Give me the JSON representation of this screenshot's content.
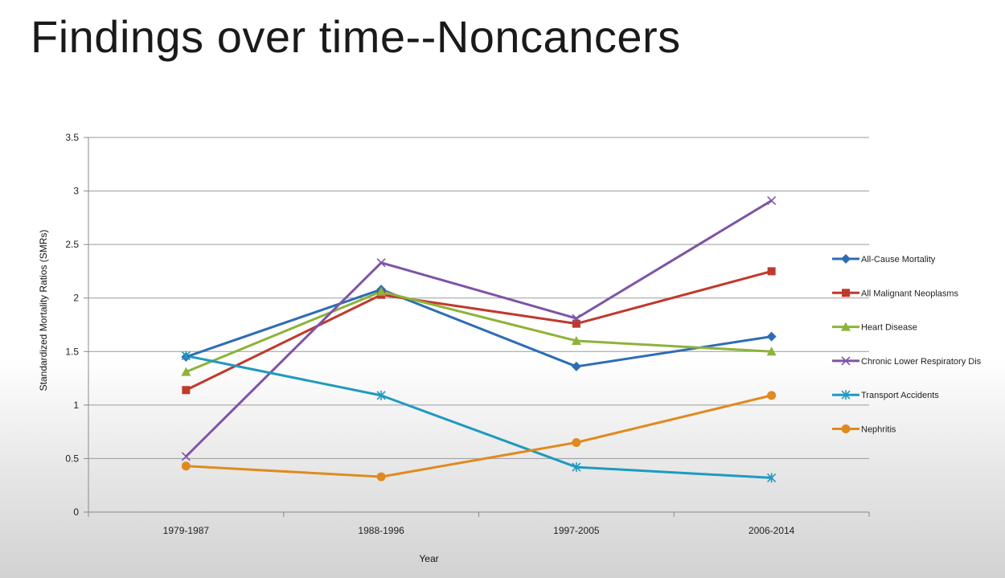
{
  "slide": {
    "title": "Findings over time--Noncancers"
  },
  "chart_data": {
    "type": "line",
    "title": "",
    "xlabel": "Year",
    "ylabel": "Standardized Mortality Ratios (SMRs)",
    "categories": [
      "1979-1987",
      "1988-1996",
      "1997-2005",
      "2006-2014"
    ],
    "ylim": [
      0,
      3.5
    ],
    "yticks": [
      0,
      0.5,
      1,
      1.5,
      2,
      2.5,
      3,
      3.5
    ],
    "ytick_labels": [
      "0",
      "0.5",
      "1",
      "1.5",
      "2",
      "2.5",
      "3",
      "3.5"
    ],
    "grid": true,
    "legend_position": "right",
    "series": [
      {
        "name": "All-Cause Mortality",
        "values": [
          1.45,
          2.08,
          1.36,
          1.64
        ],
        "color": "#2e6db4",
        "marker": "diamond"
      },
      {
        "name": "All Malignant Neoplasms",
        "values": [
          1.14,
          2.03,
          1.76,
          2.25
        ],
        "color": "#c0392b",
        "marker": "square"
      },
      {
        "name": "Heart Disease",
        "values": [
          1.31,
          2.06,
          1.6,
          1.5
        ],
        "color": "#8db33a",
        "marker": "triangle"
      },
      {
        "name": "Chronic Lower Respiratory Dis",
        "values": [
          0.52,
          2.33,
          1.81,
          2.91
        ],
        "color": "#7d55a6",
        "marker": "x"
      },
      {
        "name": "Transport Accidents",
        "values": [
          1.46,
          1.09,
          0.42,
          0.32
        ],
        "color": "#1f9ac0",
        "marker": "star"
      },
      {
        "name": "Nephritis",
        "values": [
          0.43,
          0.33,
          0.65,
          1.09
        ],
        "color": "#e08a1e",
        "marker": "circle"
      }
    ]
  }
}
